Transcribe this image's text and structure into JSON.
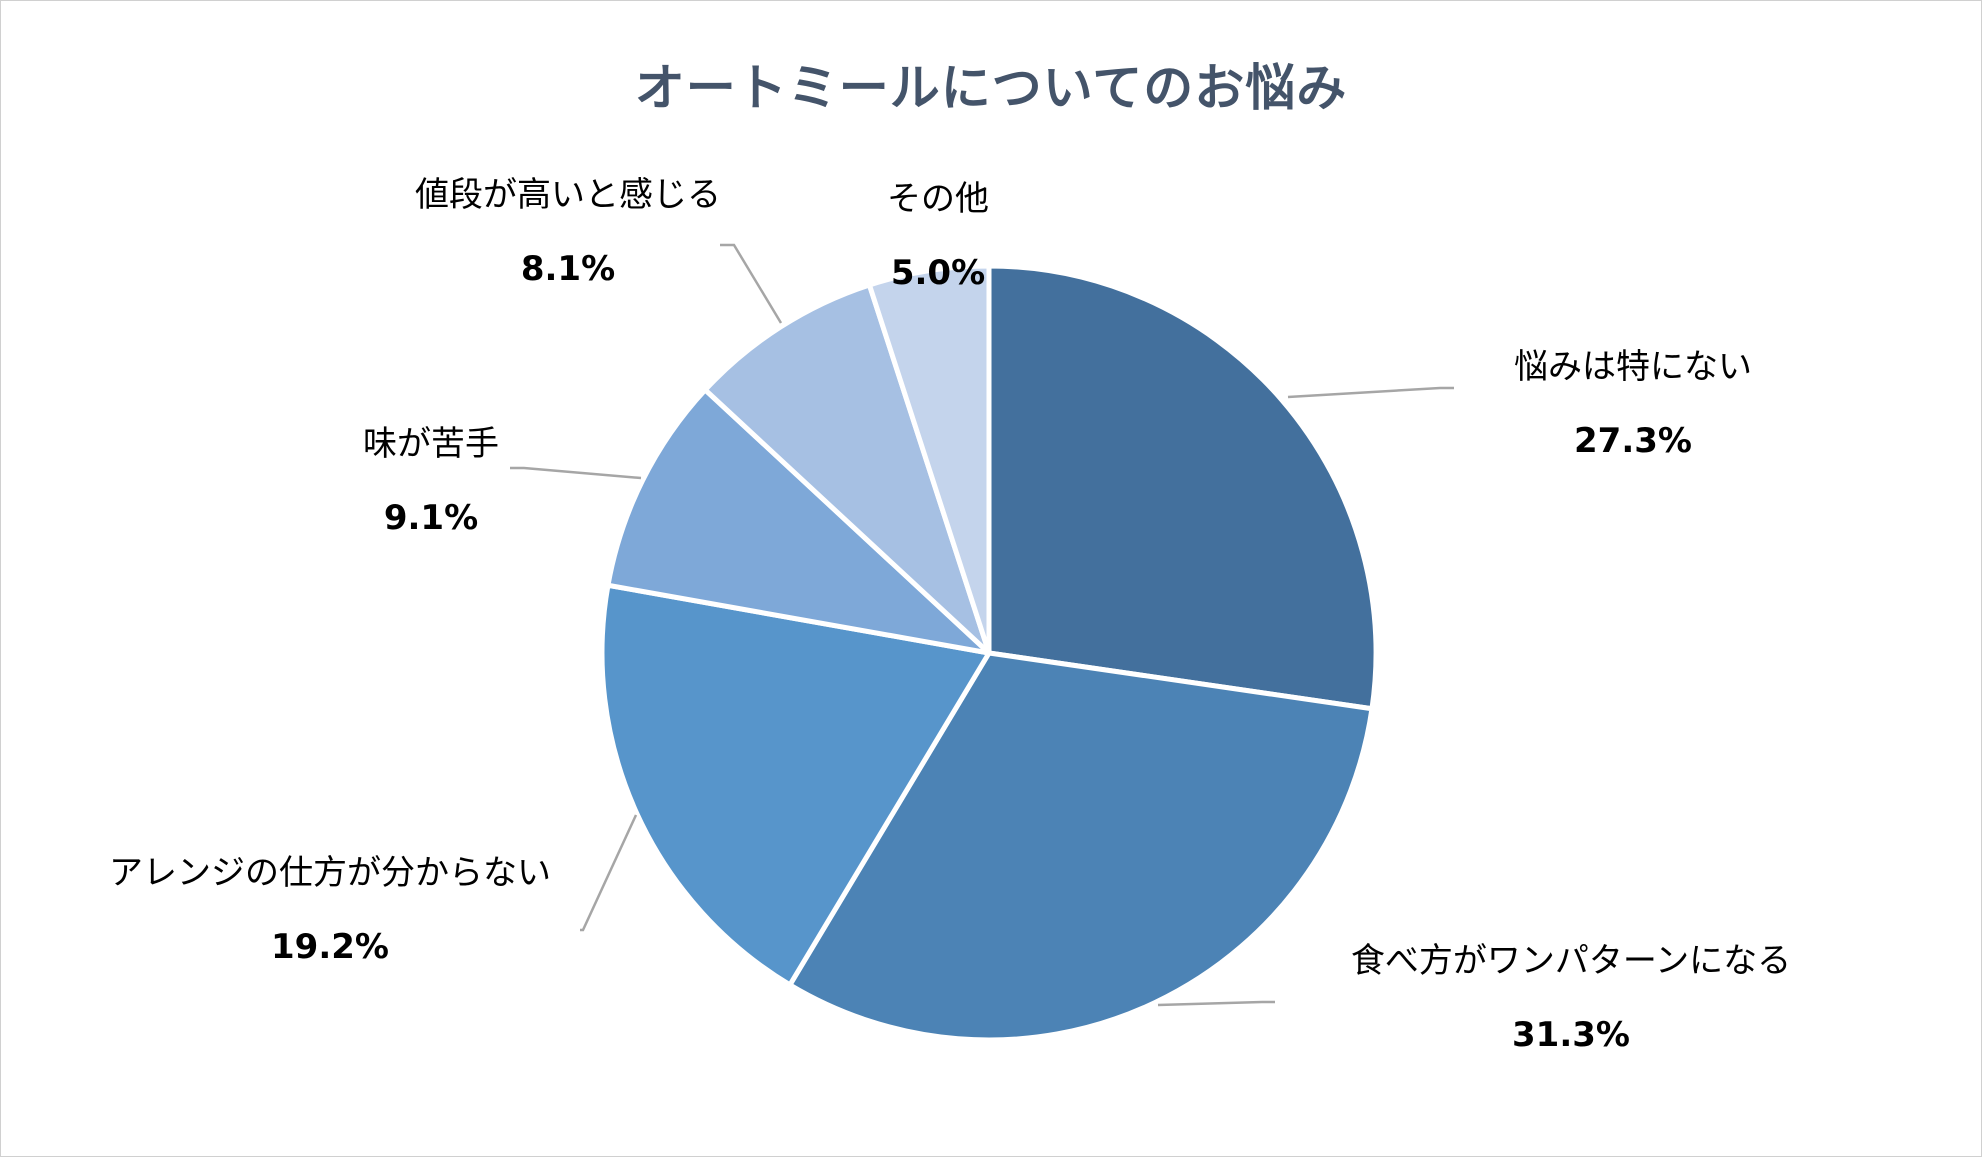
{
  "chart_data": {
    "type": "pie",
    "title": "オートミールについてのお悩み",
    "slices": [
      {
        "label": "悩みは特にない",
        "value": 27.3,
        "value_label": "27.3%",
        "color": "#43709d"
      },
      {
        "label": "食べ方がワンパターンになる",
        "value": 31.3,
        "value_label": "31.3%",
        "color": "#4c83b5"
      },
      {
        "label": "アレンジの仕方が分からない",
        "value": 19.2,
        "value_label": "19.2%",
        "color": "#5795cb"
      },
      {
        "label": "味が苦手",
        "value": 9.1,
        "value_label": "9.1%",
        "color": "#7ea8d8"
      },
      {
        "label": "値段が高いと感じる",
        "value": 8.1,
        "value_label": "8.1%",
        "color": "#a6c0e3"
      },
      {
        "label": "その他",
        "value": 5.0,
        "value_label": "5.0%",
        "color": "#c4d4ec"
      }
    ],
    "start": "12 o'clock",
    "direction": "clockwise",
    "legend": "none",
    "labels": "outside with leader lines"
  }
}
